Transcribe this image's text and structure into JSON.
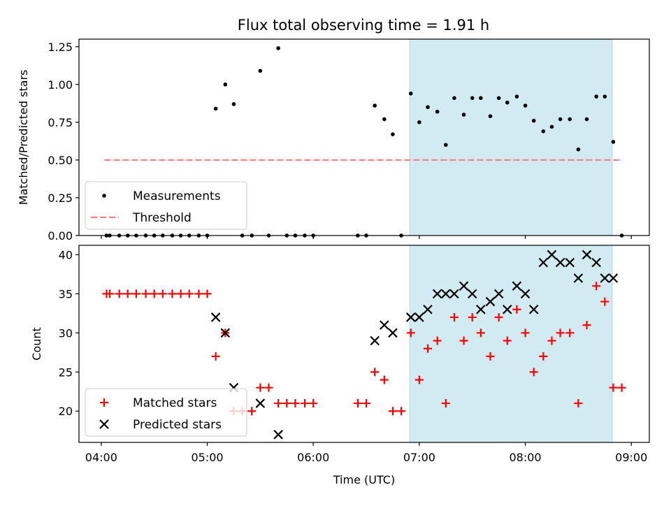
{
  "title": "Flux total observing time = 1.91 h",
  "colors": {
    "span": "#add8e6",
    "threshold": "#ff7f7f",
    "measurement": "#000000",
    "matched": "#ff0000",
    "predicted": "#000000"
  },
  "chart_data": [
    {
      "type": "scatter",
      "ylabel": "Matched/Predicted stars",
      "ylim": [
        0,
        1.3
      ],
      "yticks": [
        0,
        0.25,
        0.5,
        0.75,
        1.0,
        1.25
      ],
      "ytick_labels": [
        "0.00",
        "0.25",
        "0.50",
        "0.75",
        "1.00",
        "1.25"
      ],
      "xlim": [
        3.79,
        9.17
      ],
      "x_unit": "hours UTC",
      "highlight_span": [
        6.91,
        8.82
      ],
      "legend": {
        "placement": "lower-left",
        "entries": [
          "Measurements",
          "Threshold"
        ]
      },
      "threshold": {
        "name": "Threshold",
        "value": 0.5,
        "x_range": [
          4.03,
          8.91
        ]
      },
      "series": [
        {
          "name": "Measurements",
          "marker": "dot",
          "x": [
            4.05,
            4.08,
            4.17,
            4.25,
            4.33,
            4.42,
            4.5,
            4.58,
            4.67,
            4.75,
            4.83,
            4.92,
            5.0,
            5.08,
            5.17,
            5.25,
            5.33,
            5.42,
            5.5,
            5.58,
            5.67,
            5.75,
            5.83,
            5.92,
            6.0,
            6.42,
            6.5,
            6.58,
            6.67,
            6.75,
            6.83,
            6.92,
            7.0,
            7.08,
            7.17,
            7.25,
            7.33,
            7.42,
            7.5,
            7.58,
            7.67,
            7.75,
            7.83,
            7.92,
            8.0,
            8.08,
            8.17,
            8.25,
            8.33,
            8.42,
            8.5,
            8.58,
            8.67,
            8.75,
            8.83,
            8.91
          ],
          "y": [
            0,
            0,
            0,
            0,
            0,
            0,
            0,
            0,
            0,
            0,
            0,
            0,
            0,
            0.84,
            1.0,
            0.87,
            0,
            0,
            1.09,
            0,
            1.24,
            0,
            0,
            0,
            0,
            0,
            0,
            0.86,
            0.77,
            0.67,
            0,
            0.94,
            0.75,
            0.85,
            0.82,
            0.6,
            0.91,
            0.8,
            0.91,
            0.91,
            0.79,
            0.91,
            0.88,
            0.92,
            0.86,
            0.76,
            0.69,
            0.72,
            0.77,
            0.77,
            0.57,
            0.77,
            0.92,
            0.92,
            0.62,
            0
          ]
        }
      ]
    },
    {
      "type": "scatter",
      "xlabel": "Time (UTC)",
      "ylabel": "Count",
      "ylim": [
        16,
        41.2
      ],
      "yticks": [
        20,
        25,
        30,
        35,
        40
      ],
      "ytick_labels": [
        "20",
        "25",
        "30",
        "35",
        "40"
      ],
      "xlim": [
        3.79,
        9.17
      ],
      "xticks": [
        4,
        5,
        6,
        7,
        8,
        9
      ],
      "xtick_labels": [
        "04:00",
        "05:00",
        "06:00",
        "07:00",
        "08:00",
        "09:00"
      ],
      "highlight_span": [
        6.91,
        8.82
      ],
      "legend": {
        "placement": "lower-left",
        "entries": [
          "Matched stars",
          "Predicted stars"
        ]
      },
      "series": [
        {
          "name": "Matched stars",
          "marker": "plus",
          "x": [
            4.05,
            4.08,
            4.17,
            4.25,
            4.33,
            4.42,
            4.5,
            4.58,
            4.67,
            4.75,
            4.83,
            4.92,
            5.0,
            5.08,
            5.17,
            5.25,
            5.33,
            5.42,
            5.5,
            5.58,
            5.67,
            5.75,
            5.83,
            5.92,
            6.0,
            6.42,
            6.5,
            6.58,
            6.67,
            6.75,
            6.83,
            6.92,
            7.0,
            7.08,
            7.17,
            7.25,
            7.33,
            7.42,
            7.5,
            7.58,
            7.67,
            7.75,
            7.83,
            7.92,
            8.0,
            8.08,
            8.17,
            8.25,
            8.33,
            8.42,
            8.5,
            8.58,
            8.67,
            8.75,
            8.83,
            8.91
          ],
          "y": [
            35,
            35,
            35,
            35,
            35,
            35,
            35,
            35,
            35,
            35,
            35,
            35,
            35,
            27,
            30,
            20,
            20,
            20,
            23,
            23,
            21,
            21,
            21,
            21,
            21,
            21,
            21,
            25,
            24,
            20,
            20,
            30,
            24,
            28,
            29,
            21,
            32,
            29,
            32,
            30,
            27,
            32,
            29,
            33,
            30,
            25,
            27,
            29,
            30,
            30,
            21,
            31,
            36,
            34,
            23,
            23
          ]
        },
        {
          "name": "Predicted stars",
          "marker": "x",
          "x": [
            5.08,
            5.17,
            5.25,
            5.5,
            5.67,
            6.58,
            6.67,
            6.75,
            6.92,
            7.0,
            7.08,
            7.17,
            7.25,
            7.33,
            7.42,
            7.5,
            7.58,
            7.67,
            7.75,
            7.83,
            7.92,
            8.0,
            8.08,
            8.17,
            8.25,
            8.33,
            8.42,
            8.5,
            8.58,
            8.67,
            8.75,
            8.83
          ],
          "y": [
            32,
            30,
            23,
            21,
            17,
            29,
            31,
            30,
            32,
            32,
            33,
            35,
            35,
            35,
            36,
            35,
            33,
            34,
            35,
            33,
            36,
            35,
            33,
            39,
            40,
            39,
            39,
            37,
            40,
            39,
            37,
            37
          ]
        }
      ]
    }
  ]
}
